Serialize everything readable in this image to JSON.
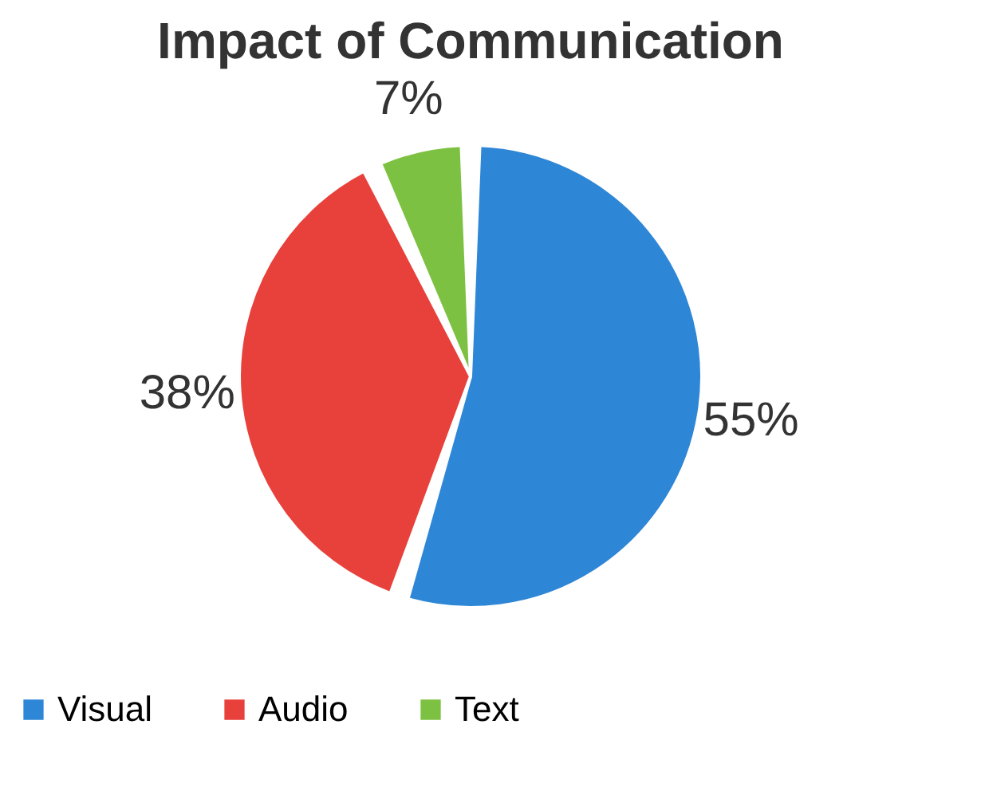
{
  "chart_data": {
    "type": "pie",
    "title": "Impact of Communication",
    "categories": [
      "Visual",
      "Audio",
      "Text"
    ],
    "values": [
      55,
      38,
      7
    ],
    "colors": [
      "#2e86d6",
      "#e8403a",
      "#7dc142"
    ],
    "value_labels": [
      "55%",
      "38%",
      "7%"
    ],
    "legend": "bottom"
  }
}
